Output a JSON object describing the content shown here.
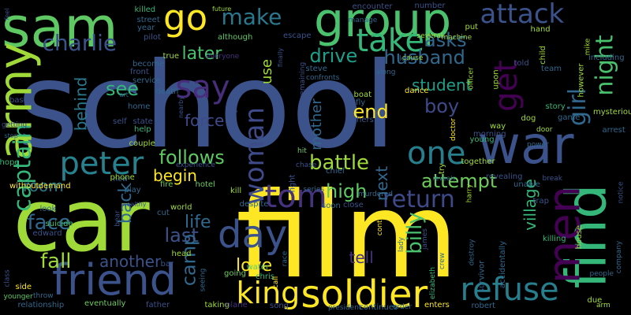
{
  "wordcloud": {
    "background": "#000000",
    "palette": {
      "yellow": "#fde725",
      "lime": "#a0da39",
      "green": "#4ac16d",
      "teal": "#1fa187",
      "cyan": "#277f8e",
      "blue": "#365c8d",
      "indigo": "#46327e",
      "purple": "#440154"
    },
    "words": [
      {
        "text": "school",
        "color": "#3b528b"
      },
      {
        "text": "film",
        "color": "#fde725"
      },
      {
        "text": "car",
        "color": "#a0da39"
      },
      {
        "text": "group",
        "color": "#4ac16d"
      },
      {
        "text": "sam",
        "color": "#5ec962"
      },
      {
        "text": "friend",
        "color": "#3b528b"
      },
      {
        "text": "war",
        "color": "#3b528b"
      },
      {
        "text": "army",
        "color": "#a0da39"
      },
      {
        "text": "find",
        "color": "#35b779"
      },
      {
        "text": "go",
        "color": "#fde725"
      },
      {
        "text": "soldier",
        "color": "#fde725"
      },
      {
        "text": "refuse",
        "color": "#277f8e"
      },
      {
        "text": "tom",
        "color": "#46327e"
      },
      {
        "text": "men",
        "color": "#440154"
      },
      {
        "text": "day",
        "color": "#3b528b"
      },
      {
        "text": "one",
        "color": "#277f8e"
      },
      {
        "text": "peter",
        "color": "#26828e"
      },
      {
        "text": "woman",
        "color": "#3e4a89"
      },
      {
        "text": "take",
        "color": "#35b779"
      },
      {
        "text": "say",
        "color": "#472d7b"
      },
      {
        "text": "attack",
        "color": "#3b528b"
      },
      {
        "text": "make",
        "color": "#2a788e"
      },
      {
        "text": "king",
        "color": "#fde725"
      },
      {
        "text": "get",
        "color": "#440154"
      },
      {
        "text": "girl",
        "color": "#31688e"
      },
      {
        "text": "night",
        "color": "#4ac16d"
      },
      {
        "text": "charlie",
        "color": "#3b528b"
      },
      {
        "text": "billy",
        "color": "#4ac16d"
      },
      {
        "text": "captain",
        "color": "#35b779"
      },
      {
        "text": "husband",
        "color": "#31688e"
      },
      {
        "text": "drive",
        "color": "#1f9e89"
      },
      {
        "text": "return",
        "color": "#3e4a89"
      },
      {
        "text": "high",
        "color": "#5ec962"
      },
      {
        "text": "battle",
        "color": "#a0da39"
      },
      {
        "text": "follows",
        "color": "#5ec962"
      },
      {
        "text": "love",
        "color": "#fde725"
      },
      {
        "text": "last",
        "color": "#3b528b"
      },
      {
        "text": "face",
        "color": "#31688e"
      },
      {
        "text": "fall",
        "color": "#a0da39"
      },
      {
        "text": "another",
        "color": "#3b528b"
      },
      {
        "text": "life",
        "color": "#31688e"
      },
      {
        "text": "end",
        "color": "#fde725"
      },
      {
        "text": "boy",
        "color": "#3e4a89"
      },
      {
        "text": "force",
        "color": "#3e4a89"
      },
      {
        "text": "see",
        "color": "#35b779"
      },
      {
        "text": "later",
        "color": "#4ac16d"
      },
      {
        "text": "room",
        "color": "#2a788e"
      },
      {
        "text": "back",
        "color": "#31688e"
      },
      {
        "text": "camp",
        "color": "#31688e"
      },
      {
        "text": "attempt",
        "color": "#6ccd5a"
      },
      {
        "text": "begin",
        "color": "#fde725"
      },
      {
        "text": "asks",
        "color": "#31688e"
      },
      {
        "text": "student",
        "color": "#1f9e89"
      },
      {
        "text": "behind",
        "color": "#2a788e"
      },
      {
        "text": "village",
        "color": "#35b779"
      },
      {
        "text": "next",
        "color": "#31688e"
      },
      {
        "text": "tell",
        "color": "#46327e"
      },
      {
        "text": "mother",
        "color": "#31688e"
      },
      {
        "text": "use",
        "color": "#a0da39"
      },
      {
        "text": "killed",
        "color": "#35b779"
      },
      {
        "text": "street",
        "color": "#31688e"
      },
      {
        "text": "encounter",
        "color": "#3b528b"
      },
      {
        "text": "number",
        "color": "#3b528b"
      },
      {
        "text": "escape",
        "color": "#3b528b"
      },
      {
        "text": "although",
        "color": "#5ec962"
      },
      {
        "text": "pilot",
        "color": "#3b528b"
      },
      {
        "text": "year",
        "color": "#31688e"
      },
      {
        "text": "true",
        "color": "#a0da39"
      },
      {
        "text": "front",
        "color": "#3b528b"
      },
      {
        "text": "become",
        "color": "#31688e"
      },
      {
        "text": "service",
        "color": "#31688e"
      },
      {
        "text": "art",
        "color": "#31688e"
      },
      {
        "text": "death",
        "color": "#31688e"
      },
      {
        "text": "base",
        "color": "#3b528b"
      },
      {
        "text": "home",
        "color": "#31688e"
      },
      {
        "text": "state",
        "color": "#3b528b"
      },
      {
        "text": "self",
        "color": "#3b528b"
      },
      {
        "text": "help",
        "color": "#35b779"
      },
      {
        "text": "couple",
        "color": "#a0da39"
      },
      {
        "text": "getting",
        "color": "#3e4a89"
      },
      {
        "text": "stop",
        "color": "#31688e"
      },
      {
        "text": "hope",
        "color": "#35b779"
      },
      {
        "text": "without",
        "color": "#fde725"
      },
      {
        "text": "demand",
        "color": "#fde725"
      },
      {
        "text": "new",
        "color": "#31688e"
      },
      {
        "text": "phone",
        "color": "#a0da39"
      },
      {
        "text": "hotel",
        "color": "#6ccd5a"
      },
      {
        "text": "fire",
        "color": "#6ccd5a"
      },
      {
        "text": "play",
        "color": "#31688e"
      },
      {
        "text": "look",
        "color": "#31688e"
      },
      {
        "text": "suicide",
        "color": "#4ac16d"
      },
      {
        "text": "world",
        "color": "#a0da39"
      },
      {
        "text": "cut",
        "color": "#31688e"
      },
      {
        "text": "edward",
        "color": "#3b528b"
      },
      {
        "text": "head",
        "color": "#a0da39"
      },
      {
        "text": "bar",
        "color": "#3b528b"
      },
      {
        "text": "class",
        "color": "#3b528b"
      },
      {
        "text": "side",
        "color": "#fde725"
      },
      {
        "text": "throw",
        "color": "#31688e"
      },
      {
        "text": "relationship",
        "color": "#31688e"
      },
      {
        "text": "eventually",
        "color": "#6ccd5a"
      },
      {
        "text": "father",
        "color": "#3b528b"
      },
      {
        "text": "younger",
        "color": "#5ec962"
      },
      {
        "text": "taking",
        "color": "#a0da39"
      },
      {
        "text": "plane",
        "color": "#46327e"
      },
      {
        "text": "going",
        "color": "#6ccd5a"
      },
      {
        "text": "chris",
        "color": "#35b779"
      },
      {
        "text": "water",
        "color": "#5ec962"
      },
      {
        "text": "seeing",
        "color": "#31688e"
      },
      {
        "text": "despite",
        "color": "#31688e"
      },
      {
        "text": "kill",
        "color": "#a0da39"
      },
      {
        "text": "hit",
        "color": "#6ccd5a"
      },
      {
        "text": "chase",
        "color": "#3b528b"
      },
      {
        "text": "chief",
        "color": "#31688e"
      },
      {
        "text": "fight",
        "color": "#3b528b"
      },
      {
        "text": "series",
        "color": "#31688e"
      },
      {
        "text": "soon",
        "color": "#31688e"
      },
      {
        "text": "close",
        "color": "#3b528b"
      },
      {
        "text": "call",
        "color": "#fde725"
      },
      {
        "text": "race",
        "color": "#31688e"
      },
      {
        "text": "song",
        "color": "#3b528b"
      },
      {
        "text": "president",
        "color": "#31688e"
      },
      {
        "text": "continues",
        "color": "#31688e"
      },
      {
        "text": "order",
        "color": "#31688e"
      },
      {
        "text": "enters",
        "color": "#fde725"
      },
      {
        "text": "robert",
        "color": "#31688e"
      },
      {
        "text": "elizabeth",
        "color": "#35b779"
      },
      {
        "text": "control",
        "color": "#fde725"
      },
      {
        "text": "james",
        "color": "#3b528b"
      },
      {
        "text": "lady",
        "color": "#31688e"
      },
      {
        "text": "crew",
        "color": "#31688e"
      },
      {
        "text": "destroy",
        "color": "#31688e"
      },
      {
        "text": "survivor",
        "color": "#31688e"
      },
      {
        "text": "accidentally",
        "color": "#31688e"
      },
      {
        "text": "murdered",
        "color": "#31688e"
      },
      {
        "text": "harry",
        "color": "#a0da39"
      },
      {
        "text": "revealing",
        "color": "#3b528b"
      },
      {
        "text": "trap",
        "color": "#3b528b"
      },
      {
        "text": "unable",
        "color": "#31688e"
      },
      {
        "text": "killing",
        "color": "#35b779"
      },
      {
        "text": "house",
        "color": "#a0da39"
      },
      {
        "text": "due",
        "color": "#a0da39"
      },
      {
        "text": "arm",
        "color": "#a0da39"
      },
      {
        "text": "people",
        "color": "#31688e"
      },
      {
        "text": "company",
        "color": "#31688e"
      },
      {
        "text": "notice",
        "color": "#3b528b"
      },
      {
        "text": "break",
        "color": "#3b528b"
      },
      {
        "text": "arrest",
        "color": "#31688e"
      },
      {
        "text": "mysterious",
        "color": "#a0da39"
      },
      {
        "text": "game",
        "color": "#31688e"
      },
      {
        "text": "story",
        "color": "#35b779"
      },
      {
        "text": "door",
        "color": "#a0da39"
      },
      {
        "text": "dog",
        "color": "#a0da39"
      },
      {
        "text": "way",
        "color": "#a0da39"
      },
      {
        "text": "morning",
        "color": "#3b528b"
      },
      {
        "text": "power",
        "color": "#31688e"
      },
      {
        "text": "young",
        "color": "#35b779"
      },
      {
        "text": "together",
        "color": "#a0da39"
      },
      {
        "text": "try",
        "color": "#a0da39"
      },
      {
        "text": "reveals",
        "color": "#31688e"
      },
      {
        "text": "boat",
        "color": "#a0da39"
      },
      {
        "text": "fly",
        "color": "#31688e"
      },
      {
        "text": "others",
        "color": "#3b528b"
      },
      {
        "text": "doctor",
        "color": "#fde725"
      },
      {
        "text": "dance",
        "color": "#fde725"
      },
      {
        "text": "steve",
        "color": "#31688e"
      },
      {
        "text": "confronts",
        "color": "#31688e"
      },
      {
        "text": "along",
        "color": "#31688e"
      },
      {
        "text": "cause",
        "color": "#a0da39"
      },
      {
        "text": "leave",
        "color": "#31688e"
      },
      {
        "text": "told",
        "color": "#3b528b"
      },
      {
        "text": "several",
        "color": "#a0da39"
      },
      {
        "text": "put",
        "color": "#a0da39"
      },
      {
        "text": "machine",
        "color": "#a0da39"
      },
      {
        "text": "hand",
        "color": "#a0da39"
      },
      {
        "text": "child",
        "color": "#a0da39"
      },
      {
        "text": "team",
        "color": "#31688e"
      },
      {
        "text": "however",
        "color": "#a0da39"
      },
      {
        "text": "including",
        "color": "#31688e"
      },
      {
        "text": "mike",
        "color": "#a0da39"
      },
      {
        "text": "officer",
        "color": "#a0da39"
      },
      {
        "text": "upon",
        "color": "#a0da39"
      },
      {
        "text": "remaining",
        "color": "#3b528b"
      },
      {
        "text": "everyone",
        "color": "#46327e"
      },
      {
        "text": "nearby",
        "color": "#3b528b"
      },
      {
        "text": "every",
        "color": "#3b528b"
      },
      {
        "text": "finally",
        "color": "#3b528b"
      },
      {
        "text": "experience",
        "color": "#3b528b"
      },
      {
        "text": "manage",
        "color": "#31688e"
      },
      {
        "text": "future",
        "color": "#a0da39"
      },
      {
        "text": "feel",
        "color": "#3b528b"
      },
      {
        "text": "bear",
        "color": "#3b528b"
      },
      {
        "text": "wealthy",
        "color": "#3b528b"
      },
      {
        "text": "open",
        "color": "#3b528b"
      },
      {
        "text": "reach",
        "color": "#3b528b"
      }
    ]
  }
}
